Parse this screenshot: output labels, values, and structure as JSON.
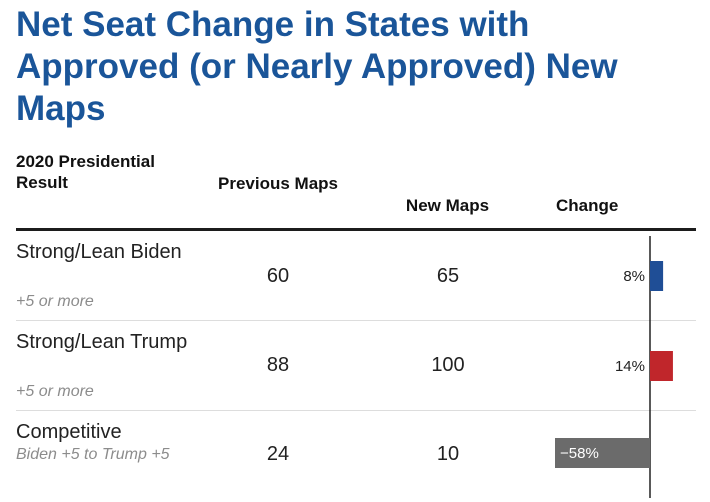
{
  "title": "Net Seat Change in States with Approved (or Nearly Approved) New Maps",
  "colors": {
    "title": "#1a5599",
    "biden": "#1f4e96",
    "trump": "#c0262b",
    "competitive": "#6b6b6b"
  },
  "headers": {
    "result": "2020 Presidential Result",
    "previous": "Previous Maps",
    "new": "New Maps",
    "change": "Change"
  },
  "rows": [
    {
      "label": "Strong/Lean Biden",
      "sub": "+5 or more",
      "previous": "60",
      "new": "65",
      "change_label": "8%"
    },
    {
      "label": "Strong/Lean Trump",
      "sub": "+5 or more",
      "previous": "88",
      "new": "100",
      "change_label": "14%"
    },
    {
      "label": "Competitive",
      "sub": "Biden +5 to Trump +5",
      "previous": "24",
      "new": "10",
      "change_label": "−58%"
    }
  ],
  "chart_data": {
    "type": "bar",
    "orientation": "horizontal",
    "categories": [
      "Strong/Lean Biden",
      "Strong/Lean Trump",
      "Competitive"
    ],
    "values": [
      8,
      14,
      -58
    ],
    "value_labels": [
      "8%",
      "14%",
      "−58%"
    ],
    "colors": [
      "#1f4e96",
      "#c0262b",
      "#6b6b6b"
    ],
    "xlim": [
      -58,
      14
    ],
    "xlabel": "",
    "ylabel": ""
  }
}
